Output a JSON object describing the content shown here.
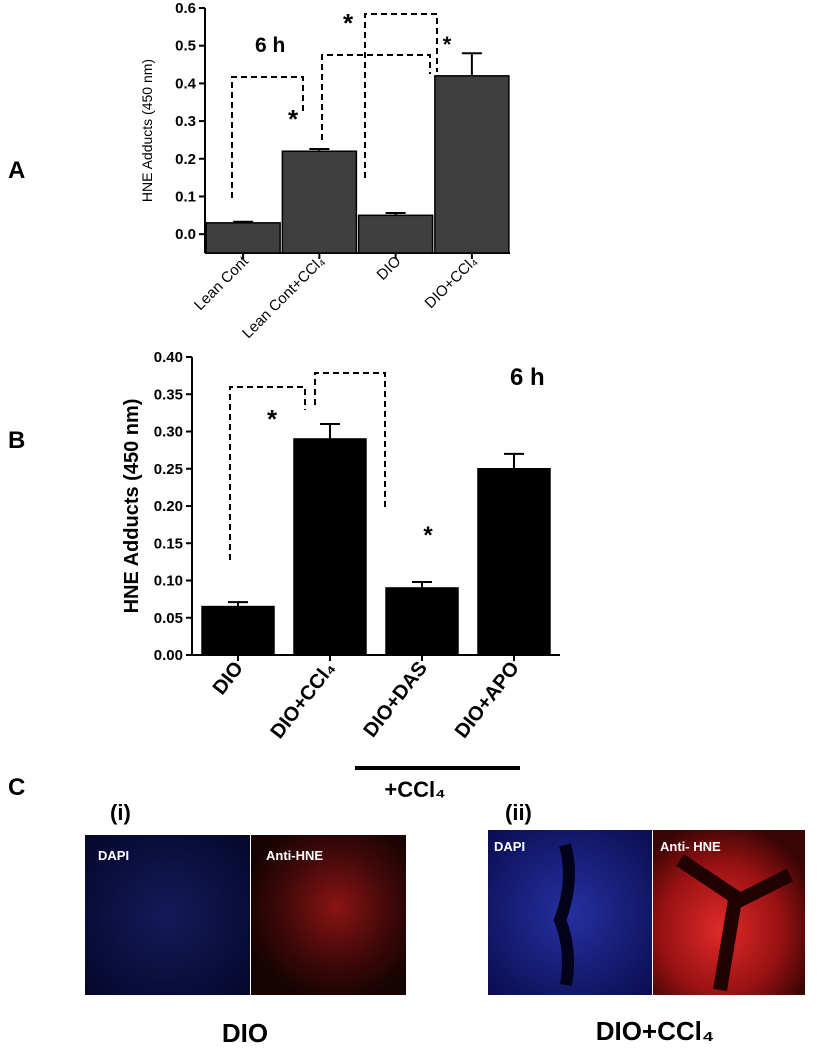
{
  "chart_data": [
    {
      "type": "bar",
      "title": "6 h",
      "y_label": "HNE Adducts (450 nm)",
      "categories": [
        "Lean Cont",
        "Lean Cont+CCl₄",
        "DIO",
        "DIO+CCl₄"
      ],
      "values": [
        0.03,
        0.22,
        0.05,
        0.42
      ],
      "errors": [
        0.003,
        0.006,
        0.006,
        0.06
      ],
      "color": "#3f3f3f",
      "ylim": [
        -0.05,
        0.6
      ],
      "yticks": [
        {
          "value": 0,
          "label": "0.0"
        },
        0.1,
        0.2,
        0.3,
        0.4,
        0.5,
        0.6
      ],
      "annotations": [
        "*",
        "*",
        "*"
      ]
    },
    {
      "type": "bar",
      "title": "6 h",
      "y_label": "HNE Adducts (450 nm)",
      "categories": [
        "DIO",
        "DIO+CCl₄",
        "DIO+DAS",
        "DIO+APO"
      ],
      "values": [
        0.065,
        0.29,
        0.09,
        0.25
      ],
      "errors": [
        0.006,
        0.02,
        0.008,
        0.02
      ],
      "color": "#000000",
      "ylim": [
        0,
        0.4
      ],
      "yticks": [
        {
          "value": 0,
          "label": "0.00"
        },
        0.05,
        {
          "value": 0.1,
          "label": "0.10"
        },
        0.15,
        {
          "value": 0.2,
          "label": "0.20"
        },
        0.25,
        {
          "value": 0.3,
          "label": "0.30"
        },
        0.35,
        {
          "value": 0.4,
          "label": "0.40"
        }
      ],
      "annotations": [
        "*",
        "*",
        "+CCl₄"
      ]
    }
  ],
  "panel_labels": [
    "A",
    "B",
    "C"
  ],
  "panel_c": {
    "images": [
      {
        "label": "(i)",
        "left": "DAPI",
        "right": "Anti-HNE",
        "caption": "DIO"
      },
      {
        "label": "(ii)",
        "left": "DAPI",
        "right": "Anti- HNE",
        "caption": "DIO+CCl₄"
      }
    ]
  }
}
